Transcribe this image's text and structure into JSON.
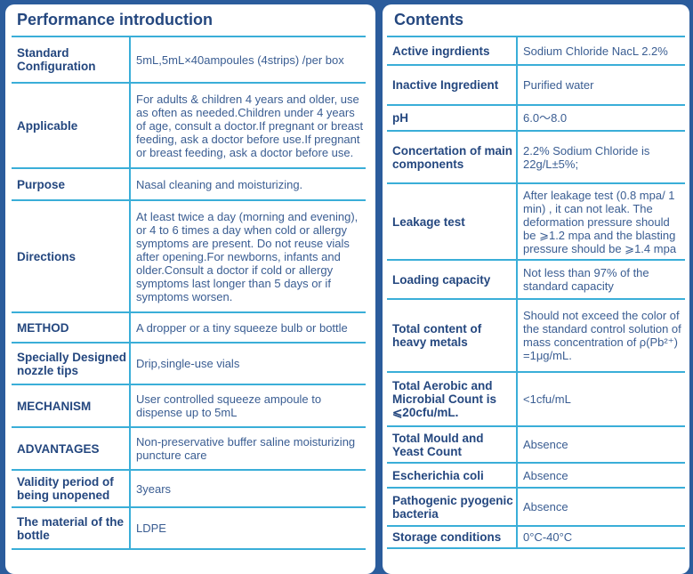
{
  "left": {
    "title": "Performance introduction",
    "rows": [
      {
        "k": "Standard Configuration",
        "v": "5mL,5mL×40ampoules (4strips) /per box"
      },
      {
        "k": "Applicable",
        "v": "For adults & children 4 years and older, use as often as needed.Children under 4 years of age, consult a doctor.If pregnant or breast feeding, ask a doctor before use.If pregnant or breast feeding, ask a doctor before use."
      },
      {
        "k": "Purpose",
        "v": "Nasal cleaning and moisturizing."
      },
      {
        "k": "Directions",
        "v": "At least twice a day (morning and evening), or 4 to 6 times a day when cold or allergy symptoms are present. Do not reuse vials after opening.For newborns, infants and older.Consult a doctor if cold or allergy symptoms last longer than 5 days or if symptoms worsen."
      },
      {
        "k": "METHOD",
        "v": "A dropper or a tiny squeeze bulb or bottle"
      },
      {
        "k": "Specially Designed nozzle tips",
        "v": "Drip,single-use vials"
      },
      {
        "k": "MECHANISM",
        "v": "User controlled squeeze ampoule to dispense up to 5mL"
      },
      {
        "k": "ADVANTAGES",
        "v": "Non-preservative buffer saline moisturizing puncture care"
      },
      {
        "k": "Validity period of being unopened",
        "v": "3years"
      },
      {
        "k": "The material of the bottle",
        "v": "LDPE"
      }
    ]
  },
  "right": {
    "title": "Contents",
    "rows": [
      {
        "k": "Active ingrdients",
        "v": "Sodium Chloride NacL 2.2%"
      },
      {
        "k": "Inactive Ingredient",
        "v": "Purified water"
      },
      {
        "k": "pH",
        "v": "6.0～8.0"
      },
      {
        "k": "Concertation of main components",
        "v": "2.2% Sodium Chloride is 22g/L±5%;"
      },
      {
        "k": "Leakage test",
        "v": "After leakage test (0.8 mpa/ 1 min) , it can not leak. The deformation pressure should be ⩾1.2 mpa and the blasting pressure should be ⩾1.4 mpa"
      },
      {
        "k": "Loading capacity",
        "v": "Not less than 97% of the standard capacity"
      },
      {
        "k": "Total content of heavy metals",
        "v": "Should not exceed the color of the standard control solution of mass concentration of ρ(Pb²⁺) =1μg/mL."
      },
      {
        "k": "Total Aerobic and Microbial Count is ⩽20cfu/mL.",
        "v": "<1cfu/mL"
      },
      {
        "k": "Total Mould and Yeast Count",
        "v": "Absence"
      },
      {
        "k": "Escherichia coli",
        "v": "Absence"
      },
      {
        "k": "Pathogenic pyogenic bacteria",
        "v": "Absence"
      },
      {
        "k": "Storage conditions",
        "v": "0°C-40°C"
      }
    ]
  }
}
